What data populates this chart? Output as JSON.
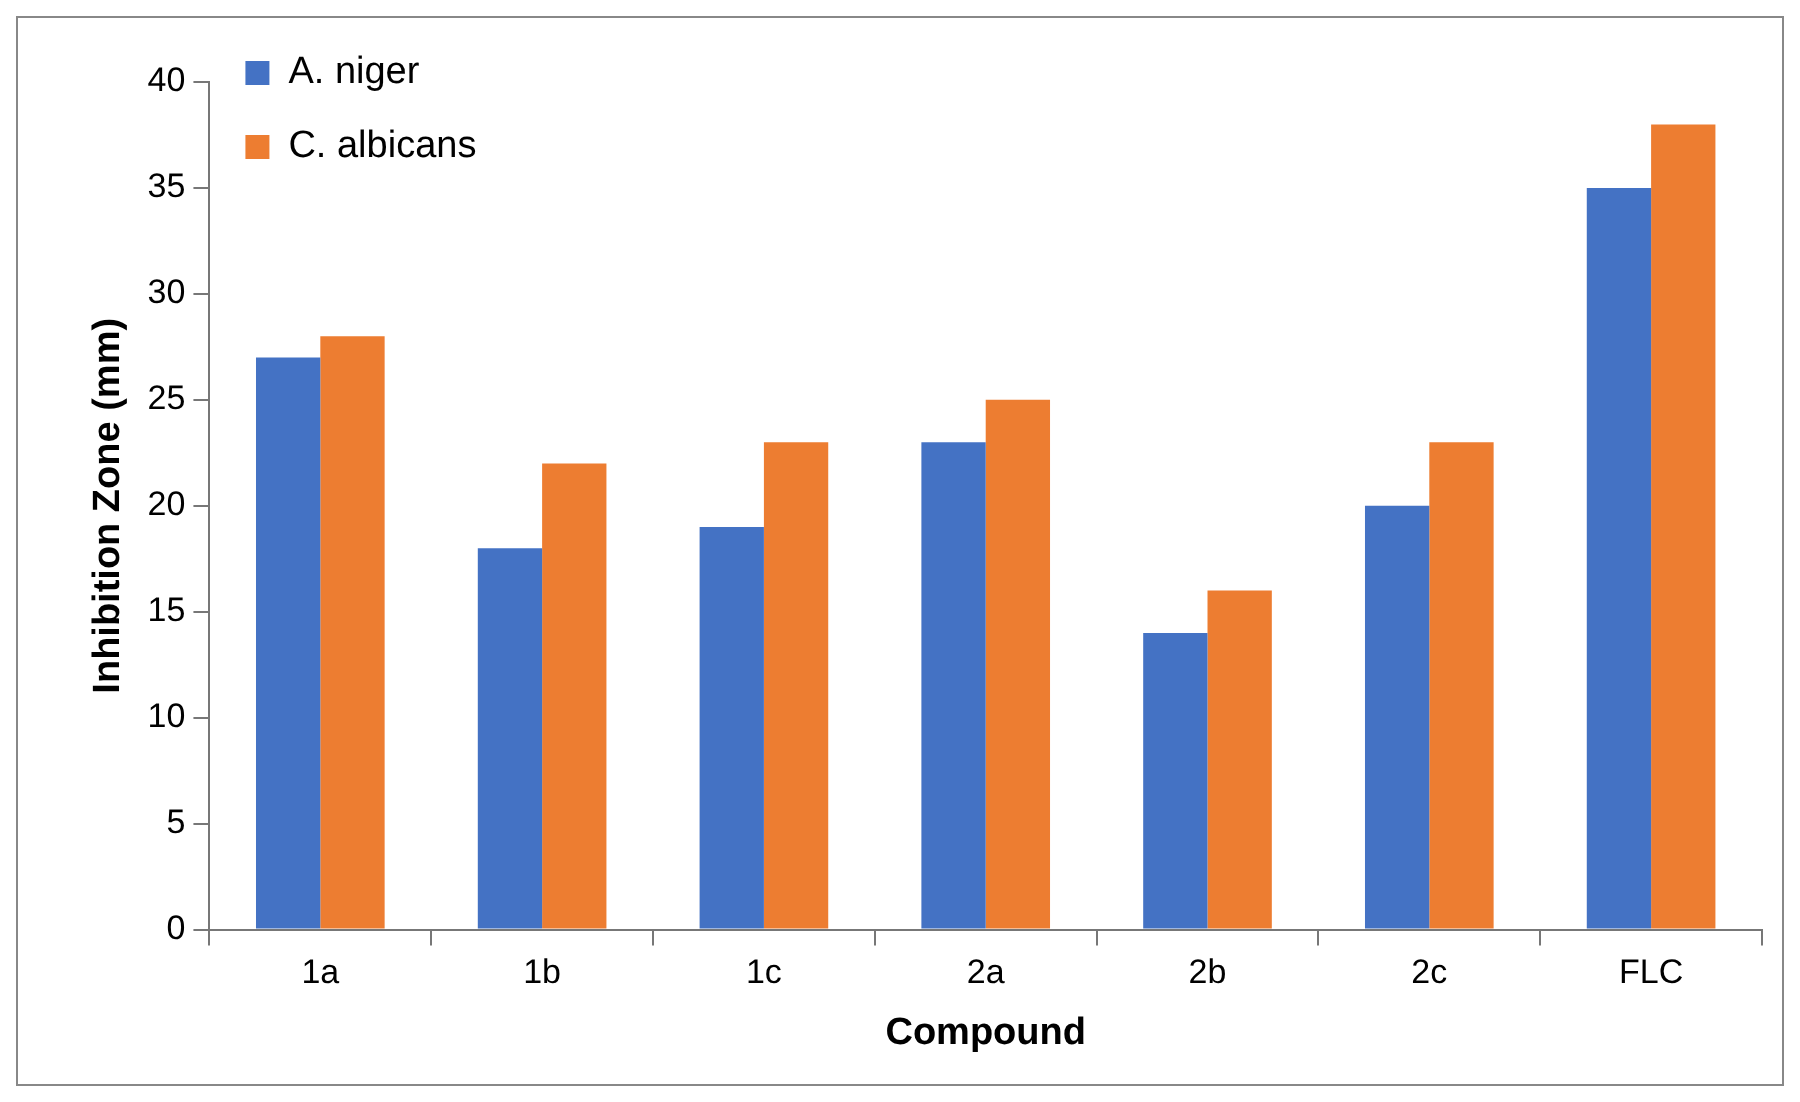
{
  "chart_data": {
    "type": "bar",
    "xlabel": "Compound",
    "ylabel": "Inhibition Zone (mm)",
    "categories": [
      "1a",
      "1b",
      "1c",
      "2a",
      "2b",
      "2c",
      "FLC"
    ],
    "series": [
      {
        "name": "A. niger",
        "color": "#4472c4",
        "values": [
          27,
          18,
          19,
          23,
          14,
          20,
          35
        ]
      },
      {
        "name": "C. albicans",
        "color": "#ed7d31",
        "values": [
          28,
          22,
          23,
          25,
          16,
          23,
          38
        ]
      }
    ],
    "ylim": [
      0,
      40
    ],
    "yticks": [
      0,
      5,
      10,
      15,
      20,
      25,
      30,
      35,
      40
    ],
    "grid": false,
    "legend": "top left"
  }
}
